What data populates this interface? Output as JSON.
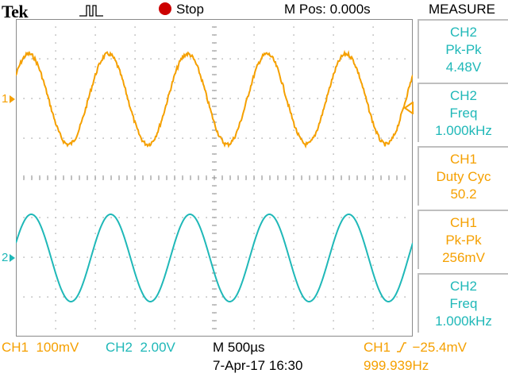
{
  "header": {
    "brand": "Tek",
    "run_state": "Stop",
    "horizontal_position": "M Pos: 0.000s",
    "menu_title": "MEASURE"
  },
  "icons": {
    "trigger_status": "trigger-pulse-icon",
    "run_state": "stop-dot-icon",
    "trigger_position": "trigger-position-arrow-icon",
    "ch1_ground": "ch1-ground-marker-icon",
    "ch2_ground": "ch2-ground-marker-icon",
    "trigger_level": "trigger-level-arrow-icon"
  },
  "colors": {
    "ch1": "#f5a000",
    "ch2": "#1fb8b8",
    "stop": "#cc0000",
    "grid": "#8a8a8a"
  },
  "markers": {
    "ch1": "1",
    "ch2": "2"
  },
  "waveforms": {
    "ch1": {
      "shape": "sine",
      "noisy": true,
      "cycles_visible": 5
    },
    "ch2": {
      "shape": "sine",
      "noisy": false,
      "cycles_visible": 5
    }
  },
  "measurements": [
    {
      "source": "CH2",
      "type": "Pk-Pk",
      "value": "4.48V"
    },
    {
      "source": "CH2",
      "type": "Freq",
      "value": "1.000kHz"
    },
    {
      "source": "CH1",
      "type": "Duty Cyc",
      "value": "50.2"
    },
    {
      "source": "CH1",
      "type": "Pk-Pk",
      "value": "256mV"
    },
    {
      "source": "CH2",
      "type": "Freq",
      "value": "1.000kHz"
    }
  ],
  "footer": {
    "ch1_scale": "CH1  100mV",
    "ch2_scale": "CH2  2.00V",
    "timebase": "M 500",
    "timebase_unit": "µs",
    "date_time": "7-Apr-17 16:30",
    "trigger_source": "CH1",
    "trigger_level": "−25.4mV",
    "trigger_freq": "999.939Hz"
  }
}
